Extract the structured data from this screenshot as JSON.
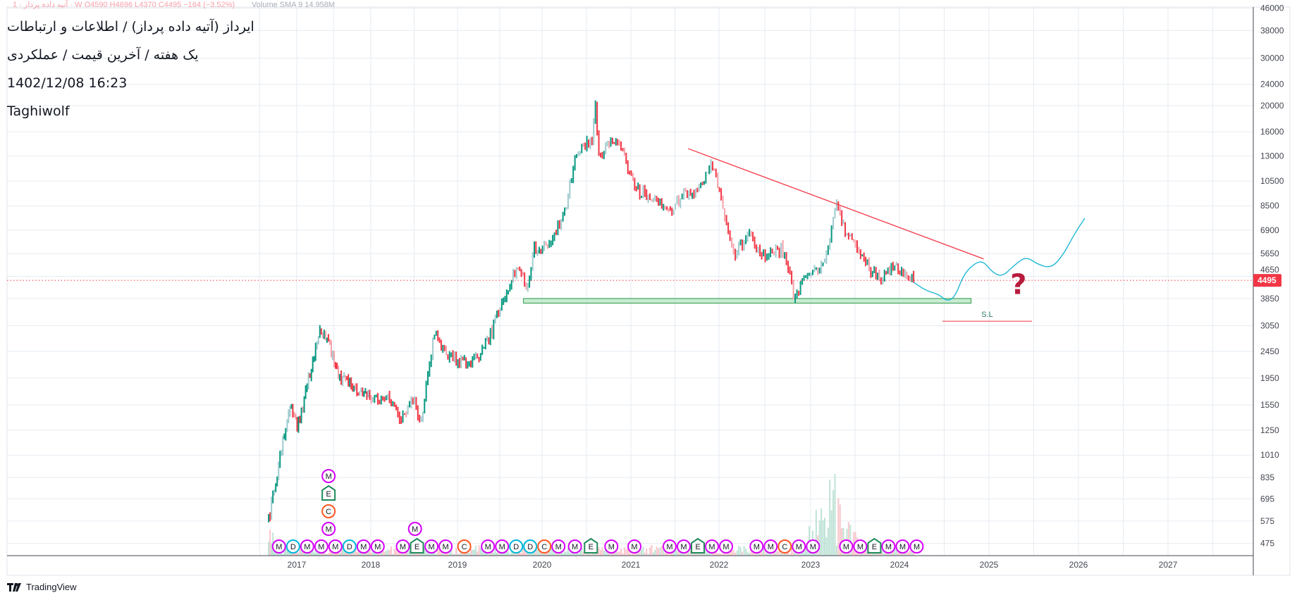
{
  "header": {
    "legend_line": "1 · آتیه داده پرداز · W  O4590  H4696  L4370  C4495  −164 (−3.52%)",
    "volume_line": "Volume SMA 9   14.958M",
    "title_lines": [
      "ایرداز (آتیه داده پرداز) / اطلاعات و ارتباطات",
      "یک هفته / آخرین قیمت / عملکردی",
      "1402/12/08 16:23",
      "Taghiwolf"
    ]
  },
  "branding": {
    "logo_text": "TradingView"
  },
  "colors": {
    "up": "#089981",
    "up_faded": "#9fcbcf",
    "down": "#f23645",
    "down_faded": "#f7a1ab",
    "trendline": "#f23645",
    "projection": "#22b8d6",
    "support_fill": "#b9e6c4",
    "support_stroke": "#2e9b4c",
    "price_label": "#f23645",
    "question": "#b71c3c",
    "marker_M": "#d500f9",
    "marker_D": "#00b8d9",
    "marker_C": "#ff5722",
    "marker_E": "#1f8a5a"
  },
  "chart_data": {
    "type": "candlestick",
    "scale": "log",
    "interval": "1W",
    "last_price": 4495,
    "last_price_label": "4495",
    "y_ticks": [
      "46000",
      "38000",
      "30000",
      "24000",
      "20000",
      "16000",
      "13000",
      "10500",
      "8500",
      "6900",
      "5650",
      "4650",
      "3850",
      "3050",
      "2450",
      "1950",
      "1550",
      "1250",
      "1010",
      "835",
      "695",
      "575",
      "475"
    ],
    "x_ticks": [
      "2017",
      "2018",
      "2019",
      "2020",
      "2021",
      "2022",
      "2023",
      "2024",
      "2025",
      "2026",
      "2027"
    ],
    "price_path": [
      [
        2016.62,
        578
      ],
      [
        2016.75,
        909
      ],
      [
        2016.85,
        1301
      ],
      [
        2016.9,
        1553
      ],
      [
        2017.01,
        1258
      ],
      [
        2017.18,
        2065
      ],
      [
        2017.3,
        2825
      ],
      [
        2017.37,
        2930
      ],
      [
        2017.57,
        1981
      ],
      [
        2017.79,
        1786
      ],
      [
        2018.02,
        1652
      ],
      [
        2018.2,
        1652
      ],
      [
        2018.35,
        1352
      ],
      [
        2018.5,
        1612
      ],
      [
        2018.57,
        1301
      ],
      [
        2018.68,
        2224
      ],
      [
        2018.73,
        2825
      ],
      [
        2018.87,
        2377
      ],
      [
        2019.07,
        2224
      ],
      [
        2019.26,
        2377
      ],
      [
        2019.41,
        2930
      ],
      [
        2019.51,
        3610
      ],
      [
        2019.65,
        4640
      ],
      [
        2019.75,
        4980
      ],
      [
        2019.81,
        4030
      ],
      [
        2019.9,
        5900
      ],
      [
        2020.04,
        5900
      ],
      [
        2020.13,
        6600
      ],
      [
        2020.28,
        8470
      ],
      [
        2020.37,
        13400
      ],
      [
        2020.46,
        13850
      ],
      [
        2020.56,
        15000
      ],
      [
        2020.6,
        20400
      ],
      [
        2020.64,
        12900
      ],
      [
        2020.79,
        14900
      ],
      [
        2020.93,
        12900
      ],
      [
        2021.06,
        9700
      ],
      [
        2021.26,
        9150
      ],
      [
        2021.44,
        8160
      ],
      [
        2021.63,
        9450
      ],
      [
        2021.77,
        9700
      ],
      [
        2021.91,
        12400
      ],
      [
        2022.01,
        9700
      ],
      [
        2022.09,
        6850
      ],
      [
        2022.18,
        5530
      ],
      [
        2022.32,
        6850
      ],
      [
        2022.45,
        5530
      ],
      [
        2022.59,
        5730
      ],
      [
        2022.68,
        5900
      ],
      [
        2022.77,
        4850
      ],
      [
        2022.82,
        3800
      ],
      [
        2022.95,
        4800
      ],
      [
        2023.09,
        4900
      ],
      [
        2023.18,
        5530
      ],
      [
        2023.29,
        8470
      ],
      [
        2023.37,
        7030
      ],
      [
        2023.51,
        5900
      ],
      [
        2023.65,
        5090
      ],
      [
        2023.79,
        4495
      ],
      [
        2023.93,
        5090
      ],
      [
        2024.06,
        4800
      ],
      [
        2024.16,
        4495
      ]
    ],
    "drawings": {
      "trendline": [
        [
          2021.65,
          13850
        ],
        [
          2024.94,
          5400
        ]
      ],
      "support_zone": {
        "from": 2019.78,
        "to": 2024.8,
        "top": 3850,
        "bottom": 3700
      },
      "stop_loss": {
        "from": 2024.48,
        "to": 2025.48,
        "price": 3170,
        "label": "S.L"
      },
      "projection": [
        [
          2024.16,
          4418
        ],
        [
          2024.3,
          4111
        ],
        [
          2024.44,
          3990
        ],
        [
          2024.53,
          3755
        ],
        [
          2024.62,
          3893
        ],
        [
          2024.72,
          4750
        ],
        [
          2024.85,
          5228
        ],
        [
          2024.94,
          5290
        ],
        [
          2025.04,
          4806
        ],
        [
          2025.15,
          4637
        ],
        [
          2025.27,
          5070
        ],
        [
          2025.41,
          5520
        ],
        [
          2025.54,
          5165
        ],
        [
          2025.69,
          4982
        ],
        [
          2025.82,
          5520
        ],
        [
          2025.96,
          6730
        ],
        [
          2026.07,
          7640
        ]
      ],
      "question_mark": {
        "date": 2025.33,
        "price": 4200,
        "text": "?"
      }
    },
    "events": [
      {
        "date": 2016.76,
        "letter": "M",
        "level": 0
      },
      {
        "date": 2016.81,
        "letter": "D",
        "level": 0
      },
      {
        "date": 2016.9,
        "letter": "M",
        "level": 0
      },
      {
        "date": 2016.99,
        "letter": "M",
        "level": 0
      },
      {
        "date": 2017.43,
        "letter": "M",
        "level": 0
      },
      {
        "date": 2017.43,
        "letter": "M",
        "level": 1
      },
      {
        "date": 2017.43,
        "letter": "C",
        "level": 2
      },
      {
        "date": 2017.43,
        "letter": "E",
        "level": 3
      },
      {
        "date": 2017.43,
        "letter": "M",
        "level": 4
      },
      {
        "date": 2017.53,
        "letter": "D",
        "level": 0
      },
      {
        "date": 2017.79,
        "letter": "M",
        "level": 0
      },
      {
        "date": 2017.98,
        "letter": "M",
        "level": 0
      },
      {
        "date": 2018.37,
        "letter": "M",
        "level": 0
      },
      {
        "date": 2018.51,
        "letter": "E",
        "level": 0
      },
      {
        "date": 2018.51,
        "letter": "M",
        "level": 1
      },
      {
        "date": 2018.7,
        "letter": "M",
        "level": 0
      },
      {
        "date": 2018.78,
        "letter": "M",
        "level": 0
      },
      {
        "date": 2019.08,
        "letter": "C",
        "level": 0
      },
      {
        "date": 2019.36,
        "letter": "M",
        "level": 0
      },
      {
        "date": 2019.43,
        "letter": "M",
        "level": 0
      },
      {
        "date": 2019.53,
        "letter": "D",
        "level": 0
      },
      {
        "date": 2019.65,
        "letter": "D",
        "level": 0
      },
      {
        "date": 2019.82,
        "letter": "C",
        "level": 0
      },
      {
        "date": 2020.03,
        "letter": "M",
        "level": 0
      },
      {
        "date": 2020.37,
        "letter": "M",
        "level": 0
      },
      {
        "date": 2020.55,
        "letter": "E",
        "level": 0
      },
      {
        "date": 2020.78,
        "letter": "M",
        "level": 0
      },
      {
        "date": 2021.04,
        "letter": "M",
        "level": 0
      },
      {
        "date": 2021.44,
        "letter": "M",
        "level": 0
      },
      {
        "date": 2021.52,
        "letter": "M",
        "level": 0
      },
      {
        "date": 2021.56,
        "letter": "E",
        "level": 0
      },
      {
        "date": 2021.77,
        "letter": "M",
        "level": 0
      },
      {
        "date": 2022.03,
        "letter": "M",
        "level": 0
      },
      {
        "date": 2022.41,
        "letter": "M",
        "level": 0
      },
      {
        "date": 2022.45,
        "letter": "M",
        "level": 0
      },
      {
        "date": 2022.56,
        "letter": "C",
        "level": 0
      },
      {
        "date": 2022.75,
        "letter": "M",
        "level": 0
      },
      {
        "date": 2023.02,
        "letter": "M",
        "level": 0
      },
      {
        "date": 2023.4,
        "letter": "M",
        "level": 0
      },
      {
        "date": 2023.45,
        "letter": "M",
        "level": 0
      },
      {
        "date": 2023.51,
        "letter": "E",
        "level": 0
      },
      {
        "date": 2023.69,
        "letter": "M",
        "level": 0
      },
      {
        "date": 2023.78,
        "letter": "M",
        "level": 0
      },
      {
        "date": 2024.04,
        "letter": "M",
        "level": 0
      }
    ]
  }
}
